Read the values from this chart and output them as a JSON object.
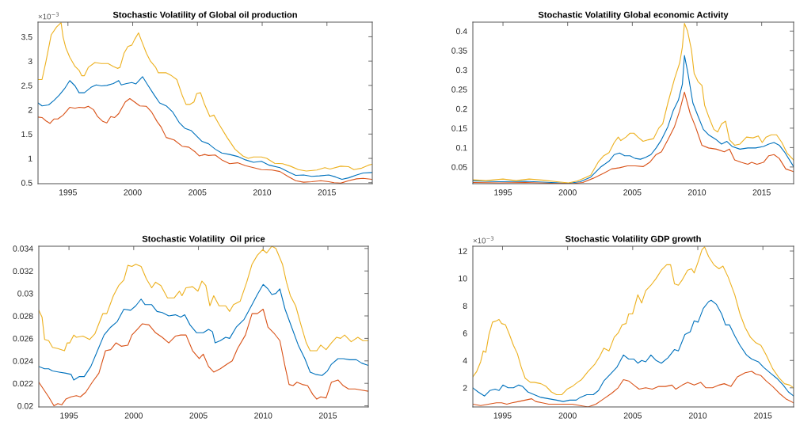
{
  "chart_data": [
    {
      "type": "line",
      "title": "Stochastic Volatility of Global oil production",
      "annotations": [
        "×10$^{−3}$"
      ],
      "xlim": [
        1992.69,
        2018.5
      ],
      "ylim": [
        0.48,
        3.8
      ],
      "xticks": [
        1995,
        2000,
        2005,
        2010,
        2015
      ],
      "yticks": [
        0.5,
        1,
        1.5,
        2,
        2.5,
        3,
        3.5
      ],
      "series": [
        {
          "color": "#0072bd",
          "x": [
            1992.69,
            1993.0,
            1993.51,
            1993.92,
            1994.33,
            1994.73,
            1995.14,
            1995.55,
            1995.86,
            1996.27,
            1996.78,
            1997.18,
            1997.59,
            1998.0,
            1998.51,
            1998.92,
            1999.12,
            1999.53,
            1999.94,
            2000.24,
            2000.76,
            2001.16,
            2001.67,
            2002.08,
            2002.59,
            2003.1,
            2003.61,
            2004.02,
            2004.53,
            2004.94,
            2005.35,
            2005.86,
            2006.37,
            2006.88,
            2007.49,
            2008.1,
            2008.71,
            2009.33,
            2009.94,
            2010.55,
            2011.37,
            2011.98,
            2012.59,
            2013.2,
            2013.82,
            2014.43,
            2015.14,
            2015.65,
            2016.16,
            2016.67,
            2017.29,
            2017.8,
            2018.47
          ],
          "values": [
            2.14,
            2.08,
            2.1,
            2.19,
            2.3,
            2.43,
            2.6,
            2.49,
            2.35,
            2.35,
            2.46,
            2.51,
            2.49,
            2.5,
            2.54,
            2.6,
            2.51,
            2.54,
            2.56,
            2.53,
            2.68,
            2.51,
            2.3,
            2.14,
            2.08,
            1.95,
            1.73,
            1.62,
            1.57,
            1.46,
            1.35,
            1.3,
            1.19,
            1.11,
            1.08,
            1.04,
            0.97,
            0.92,
            0.94,
            0.86,
            0.81,
            0.73,
            0.65,
            0.66,
            0.63,
            0.64,
            0.66,
            0.62,
            0.57,
            0.6,
            0.66,
            0.7,
            0.71
          ]
        },
        {
          "color": "#d95319",
          "x": [
            1992.69,
            1993.0,
            1993.31,
            1993.61,
            1993.92,
            1994.22,
            1994.63,
            1995.14,
            1995.55,
            1995.86,
            1996.27,
            1996.57,
            1996.98,
            1997.29,
            1997.69,
            1998.0,
            1998.31,
            1998.61,
            1998.92,
            1999.43,
            1999.78,
            2000.14,
            2000.55,
            2001.06,
            2001.47,
            2001.88,
            2002.18,
            2002.59,
            2003.2,
            2003.82,
            2004.33,
            2004.84,
            2005.14,
            2005.55,
            2005.86,
            2006.37,
            2006.88,
            2007.49,
            2008.1,
            2008.71,
            2009.33,
            2009.94,
            2010.76,
            2011.37,
            2011.98,
            2012.59,
            2013.2,
            2013.82,
            2014.53,
            2015.14,
            2015.55,
            2016.06,
            2016.67,
            2017.29,
            2017.8,
            2018.47
          ],
          "values": [
            1.85,
            1.84,
            1.77,
            1.72,
            1.81,
            1.81,
            1.89,
            2.05,
            2.03,
            2.05,
            2.04,
            2.07,
            2.0,
            1.86,
            1.76,
            1.73,
            1.86,
            1.84,
            1.92,
            2.16,
            2.23,
            2.16,
            2.08,
            2.07,
            1.95,
            1.76,
            1.65,
            1.43,
            1.38,
            1.25,
            1.23,
            1.13,
            1.05,
            1.08,
            1.06,
            1.07,
            0.97,
            0.89,
            0.91,
            0.85,
            0.81,
            0.77,
            0.76,
            0.73,
            0.63,
            0.54,
            0.51,
            0.52,
            0.54,
            0.52,
            0.5,
            0.49,
            0.54,
            0.58,
            0.59,
            0.57
          ]
        },
        {
          "color": "#edb120",
          "x": [
            1992.69,
            1993.0,
            1993.31,
            1993.71,
            1994.12,
            1994.47,
            1994.63,
            1994.84,
            1995.14,
            1995.55,
            1995.86,
            1996.06,
            1996.27,
            1996.57,
            1997.08,
            1997.59,
            1998.1,
            1998.51,
            1998.82,
            1999.02,
            1999.33,
            1999.63,
            1999.94,
            2000.14,
            2000.45,
            2000.65,
            2001.06,
            2001.37,
            2001.78,
            2001.98,
            2002.59,
            2003.0,
            2003.41,
            2003.82,
            2004.12,
            2004.43,
            2004.73,
            2004.94,
            2005.24,
            2005.55,
            2005.96,
            2006.27,
            2006.67,
            2007.29,
            2007.9,
            2008.51,
            2008.92,
            2009.33,
            2009.94,
            2010.35,
            2010.96,
            2011.57,
            2012.18,
            2012.8,
            2013.41,
            2014.22,
            2014.84,
            2015.24,
            2016.06,
            2016.67,
            2017.08,
            2017.69,
            2018.2,
            2018.47
          ],
          "values": [
            2.62,
            2.62,
            3.0,
            3.54,
            3.7,
            3.79,
            3.49,
            3.27,
            3.08,
            2.89,
            2.81,
            2.7,
            2.7,
            2.87,
            2.97,
            2.95,
            2.95,
            2.89,
            2.85,
            2.87,
            3.16,
            3.3,
            3.33,
            3.44,
            3.58,
            3.44,
            3.16,
            3.0,
            2.87,
            2.76,
            2.76,
            2.7,
            2.62,
            2.3,
            2.11,
            2.11,
            2.16,
            2.33,
            2.35,
            2.11,
            1.86,
            1.89,
            1.7,
            1.43,
            1.19,
            1.05,
            1.0,
            1.03,
            1.03,
            1.0,
            0.9,
            0.89,
            0.84,
            0.77,
            0.74,
            0.76,
            0.81,
            0.78,
            0.84,
            0.83,
            0.77,
            0.8,
            0.86,
            0.88
          ]
        }
      ]
    },
    {
      "type": "line",
      "title": "Stochastic Volatility Global economic Activity",
      "xlim": [
        1992.67,
        2017.47
      ],
      "ylim": [
        0.007,
        0.423
      ],
      "xticks": [
        1995,
        2000,
        2005,
        2010,
        2015
      ],
      "yticks": [
        0.05,
        0.1,
        0.15,
        0.2,
        0.25,
        0.3,
        0.35,
        0.4
      ],
      "series": [
        {
          "color": "#0072bd",
          "x": [
            1992.67,
            1994.7,
            1996.72,
            1998.74,
            2000.06,
            2000.97,
            2001.78,
            2002.59,
            2003.2,
            2003.6,
            2004.01,
            2004.41,
            2004.82,
            2005.22,
            2005.63,
            2006.03,
            2006.44,
            2006.84,
            2007.25,
            2007.75,
            2008.16,
            2008.56,
            2008.87,
            2009.03,
            2009.27,
            2009.68,
            2010.08,
            2010.49,
            2010.89,
            2011.5,
            2011.9,
            2012.31,
            2012.71,
            2013.32,
            2013.93,
            2014.53,
            2015.14,
            2015.55,
            2015.95,
            2016.36,
            2016.76,
            2017.47
          ],
          "values": [
            0.014,
            0.012,
            0.013,
            0.01,
            0.008,
            0.012,
            0.024,
            0.051,
            0.065,
            0.082,
            0.086,
            0.079,
            0.079,
            0.072,
            0.07,
            0.075,
            0.082,
            0.099,
            0.12,
            0.154,
            0.195,
            0.222,
            0.263,
            0.337,
            0.297,
            0.215,
            0.181,
            0.147,
            0.133,
            0.12,
            0.109,
            0.116,
            0.103,
            0.096,
            0.099,
            0.099,
            0.103,
            0.109,
            0.113,
            0.106,
            0.089,
            0.051
          ]
        },
        {
          "color": "#d95319",
          "x": [
            1992.67,
            1994.7,
            1996.72,
            1998.74,
            2000.36,
            2001.17,
            2001.98,
            2002.79,
            2003.4,
            2004.01,
            2004.62,
            2005.22,
            2005.83,
            2006.34,
            2006.84,
            2007.25,
            2007.75,
            2008.26,
            2008.66,
            2009.03,
            2009.47,
            2009.88,
            2010.38,
            2010.89,
            2011.5,
            2012.11,
            2012.51,
            2012.91,
            2013.42,
            2013.93,
            2014.23,
            2014.64,
            2015.14,
            2015.55,
            2015.95,
            2016.36,
            2016.86,
            2017.47
          ],
          "values": [
            0.01,
            0.009,
            0.01,
            0.008,
            0.007,
            0.01,
            0.021,
            0.034,
            0.045,
            0.048,
            0.053,
            0.053,
            0.051,
            0.062,
            0.082,
            0.089,
            0.12,
            0.154,
            0.195,
            0.243,
            0.188,
            0.154,
            0.106,
            0.099,
            0.096,
            0.089,
            0.096,
            0.068,
            0.062,
            0.057,
            0.062,
            0.057,
            0.062,
            0.079,
            0.082,
            0.072,
            0.045,
            0.038
          ]
        },
        {
          "color": "#edb120",
          "x": [
            1992.67,
            1993.68,
            1995.0,
            1996.01,
            1997.02,
            1998.14,
            1999.15,
            2000.06,
            2000.77,
            2001.38,
            2001.78,
            2002.39,
            2002.79,
            2003.2,
            2003.6,
            2003.91,
            2004.11,
            2004.51,
            2004.82,
            2005.12,
            2005.43,
            2005.83,
            2006.23,
            2006.64,
            2007.04,
            2007.35,
            2007.75,
            2008.26,
            2008.66,
            2008.87,
            2009.03,
            2009.27,
            2009.57,
            2009.78,
            2010.08,
            2010.38,
            2010.59,
            2010.89,
            2011.3,
            2011.6,
            2011.9,
            2012.21,
            2012.51,
            2012.91,
            2013.32,
            2013.83,
            2014.33,
            2014.74,
            2015.04,
            2015.34,
            2015.75,
            2016.15,
            2016.56,
            2016.96,
            2017.47
          ],
          "values": [
            0.017,
            0.015,
            0.019,
            0.015,
            0.019,
            0.016,
            0.012,
            0.009,
            0.014,
            0.023,
            0.029,
            0.064,
            0.079,
            0.087,
            0.113,
            0.127,
            0.118,
            0.127,
            0.137,
            0.137,
            0.127,
            0.116,
            0.12,
            0.123,
            0.15,
            0.161,
            0.215,
            0.277,
            0.318,
            0.359,
            0.42,
            0.4,
            0.352,
            0.291,
            0.27,
            0.26,
            0.209,
            0.181,
            0.147,
            0.14,
            0.161,
            0.168,
            0.12,
            0.106,
            0.109,
            0.127,
            0.125,
            0.13,
            0.113,
            0.127,
            0.133,
            0.133,
            0.113,
            0.086,
            0.068
          ]
        }
      ]
    },
    {
      "type": "line",
      "title": "Stochastic Volatility  Oil price",
      "xlim": [
        1992.67,
        2018.12
      ],
      "ylim": [
        0.0199,
        0.0342
      ],
      "xticks": [
        1995,
        2000,
        2005,
        2010,
        2015
      ],
      "yticks": [
        0.02,
        0.022,
        0.024,
        0.026,
        0.028,
        0.03,
        0.032,
        0.034
      ],
      "series": [
        {
          "color": "#0072bd",
          "x": [
            1992.67,
            1993.12,
            1993.43,
            1993.73,
            1994.24,
            1994.76,
            1995.16,
            1995.37,
            1995.78,
            1996.18,
            1996.69,
            1997.2,
            1997.71,
            1998.22,
            1998.73,
            1999.24,
            1999.76,
            2000.16,
            2000.57,
            2000.88,
            2001.39,
            2001.8,
            2002.2,
            2002.71,
            2003.22,
            2003.63,
            2003.94,
            2004.35,
            2004.86,
            2005.37,
            2005.78,
            2006.08,
            2006.29,
            2006.69,
            2007.1,
            2007.41,
            2007.92,
            2008.53,
            2009.14,
            2009.55,
            2010.0,
            2010.37,
            2010.67,
            2010.98,
            2011.29,
            2011.69,
            2012.2,
            2012.71,
            2013.22,
            2013.63,
            2014.04,
            2014.55,
            2014.96,
            2015.27,
            2015.78,
            2016.18,
            2016.69,
            2017.2,
            2017.61,
            2018.12
          ],
          "values": [
            0.0235,
            0.0233,
            0.0233,
            0.0231,
            0.023,
            0.0229,
            0.0228,
            0.0223,
            0.0226,
            0.0226,
            0.0235,
            0.0249,
            0.0263,
            0.027,
            0.0275,
            0.0286,
            0.0285,
            0.0289,
            0.0295,
            0.029,
            0.029,
            0.0284,
            0.0283,
            0.028,
            0.0281,
            0.0279,
            0.0281,
            0.0272,
            0.0265,
            0.0265,
            0.0268,
            0.0266,
            0.0256,
            0.0258,
            0.0261,
            0.026,
            0.027,
            0.0277,
            0.029,
            0.0299,
            0.0308,
            0.0304,
            0.0299,
            0.03,
            0.0304,
            0.0286,
            0.027,
            0.0254,
            0.0242,
            0.023,
            0.0228,
            0.0227,
            0.0231,
            0.0237,
            0.0242,
            0.0242,
            0.0241,
            0.0241,
            0.0238,
            0.0236
          ]
        },
        {
          "color": "#d95319",
          "x": [
            1992.67,
            1993.02,
            1993.43,
            1993.84,
            1994.14,
            1994.45,
            1994.76,
            1995.16,
            1995.57,
            1995.88,
            1996.29,
            1996.8,
            1997.31,
            1997.82,
            1998.22,
            1998.63,
            1999.04,
            1999.55,
            1999.86,
            2000.27,
            2000.67,
            2001.18,
            2001.69,
            2002.2,
            2002.71,
            2003.22,
            2003.63,
            2004.04,
            2004.55,
            2005.06,
            2005.37,
            2005.78,
            2006.18,
            2006.69,
            2007.2,
            2007.61,
            2008.02,
            2008.63,
            2009.14,
            2009.55,
            2010.0,
            2010.37,
            2010.88,
            2011.29,
            2011.69,
            2012.0,
            2012.31,
            2012.61,
            2013.02,
            2013.43,
            2013.84,
            2014.14,
            2014.45,
            2014.86,
            2015.27,
            2015.78,
            2016.18,
            2016.59,
            2017.1,
            2017.61,
            2018.12
          ],
          "values": [
            0.0221,
            0.0215,
            0.0208,
            0.02,
            0.0202,
            0.0201,
            0.0206,
            0.0208,
            0.0209,
            0.0208,
            0.0212,
            0.0221,
            0.0229,
            0.0249,
            0.025,
            0.0256,
            0.0253,
            0.0254,
            0.0263,
            0.0268,
            0.0273,
            0.0272,
            0.0265,
            0.0261,
            0.0256,
            0.0262,
            0.0263,
            0.0263,
            0.0249,
            0.0242,
            0.0246,
            0.0235,
            0.023,
            0.0233,
            0.0237,
            0.024,
            0.0251,
            0.0263,
            0.0282,
            0.0282,
            0.0286,
            0.027,
            0.0264,
            0.0258,
            0.0235,
            0.0219,
            0.0218,
            0.0221,
            0.0219,
            0.0218,
            0.021,
            0.0206,
            0.0208,
            0.0207,
            0.0221,
            0.0223,
            0.0218,
            0.0215,
            0.0215,
            0.0214,
            0.0213
          ]
        },
        {
          "color": "#edb120",
          "x": [
            1992.67,
            1992.92,
            1993.12,
            1993.43,
            1993.73,
            1994.14,
            1994.65,
            1994.86,
            1995.06,
            1995.37,
            1995.57,
            1996.08,
            1996.59,
            1997.0,
            1997.61,
            1997.92,
            1998.43,
            1998.84,
            1999.24,
            1999.55,
            1999.86,
            2000.16,
            2000.57,
            2000.98,
            2001.39,
            2001.69,
            2002.1,
            2002.61,
            2003.12,
            2003.53,
            2003.73,
            2004.04,
            2004.55,
            2004.96,
            2005.27,
            2005.57,
            2005.88,
            2006.18,
            2006.59,
            2007.1,
            2007.41,
            2007.71,
            2008.22,
            2008.73,
            2009.14,
            2009.55,
            2009.96,
            2010.27,
            2010.67,
            2010.98,
            2011.49,
            2011.8,
            2012.1,
            2012.51,
            2012.92,
            2013.33,
            2013.63,
            2014.14,
            2014.45,
            2014.86,
            2015.27,
            2015.67,
            2015.98,
            2016.29,
            2016.8,
            2017.31,
            2017.71,
            2018.12
          ],
          "values": [
            0.0285,
            0.0279,
            0.0259,
            0.0258,
            0.0252,
            0.0251,
            0.0249,
            0.0256,
            0.0256,
            0.0263,
            0.0261,
            0.0262,
            0.0259,
            0.0264,
            0.0282,
            0.0282,
            0.0298,
            0.0307,
            0.0312,
            0.0325,
            0.0324,
            0.0326,
            0.0324,
            0.0313,
            0.0305,
            0.031,
            0.0307,
            0.0296,
            0.0296,
            0.0302,
            0.0298,
            0.0305,
            0.0306,
            0.0302,
            0.0311,
            0.0307,
            0.0289,
            0.0298,
            0.0289,
            0.0289,
            0.0284,
            0.029,
            0.0293,
            0.031,
            0.0326,
            0.0334,
            0.0339,
            0.0336,
            0.0342,
            0.034,
            0.0326,
            0.031,
            0.0298,
            0.0289,
            0.0272,
            0.0256,
            0.0249,
            0.0249,
            0.0254,
            0.025,
            0.0256,
            0.0261,
            0.026,
            0.0263,
            0.0257,
            0.0261,
            0.0258,
            0.0258
          ]
        }
      ]
    },
    {
      "type": "line",
      "title": "Stochastic Volatility GDP growth",
      "annotations": [
        "×10$^{−3}$"
      ],
      "xlim": [
        1992.72,
        2017.36
      ],
      "ylim": [
        0.6,
        12.35
      ],
      "xticks": [
        1995,
        2000,
        2005,
        2010,
        2015
      ],
      "yticks": [
        2,
        4,
        6,
        8,
        10,
        12
      ],
      "series": [
        {
          "color": "#0072bd",
          "x": [
            1992.72,
            1993.12,
            1993.62,
            1994.02,
            1994.43,
            1994.73,
            1995.03,
            1995.43,
            1995.84,
            1996.24,
            1996.54,
            1996.94,
            1997.44,
            1997.95,
            1998.55,
            1999.15,
            1999.66,
            2000.16,
            2000.66,
            2000.97,
            2001.47,
            2001.97,
            2002.37,
            2002.78,
            2003.28,
            2003.78,
            2004.29,
            2004.69,
            2005.09,
            2005.39,
            2005.69,
            2006.0,
            2006.4,
            2006.8,
            2007.2,
            2007.71,
            2008.21,
            2008.51,
            2009.01,
            2009.42,
            2009.72,
            2010.02,
            2010.42,
            2010.83,
            2011.03,
            2011.43,
            2011.83,
            2012.13,
            2012.43,
            2012.84,
            2013.24,
            2013.74,
            2014.14,
            2014.65,
            2015.05,
            2015.55,
            2016.06,
            2016.56,
            2016.96,
            2017.36
          ],
          "values": [
            2.0,
            1.7,
            1.4,
            1.8,
            1.9,
            1.8,
            2.2,
            2.0,
            2.0,
            2.2,
            2.1,
            1.7,
            1.5,
            1.3,
            1.2,
            1.1,
            1.0,
            1.1,
            1.1,
            1.3,
            1.5,
            1.5,
            1.8,
            2.5,
            3.0,
            3.5,
            4.4,
            4.1,
            4.1,
            3.8,
            4.0,
            3.9,
            4.4,
            4.0,
            3.8,
            4.2,
            4.8,
            4.7,
            5.9,
            6.1,
            6.9,
            6.8,
            7.8,
            8.3,
            8.4,
            8.1,
            7.4,
            6.6,
            6.6,
            5.8,
            5.1,
            4.4,
            4.1,
            3.9,
            3.5,
            3.1,
            2.7,
            2.2,
            1.7,
            1.4
          ]
        },
        {
          "color": "#d95319",
          "x": [
            1992.72,
            1993.32,
            1993.92,
            1994.53,
            1994.93,
            1995.33,
            1995.73,
            1996.24,
            1996.74,
            1997.24,
            1997.55,
            1998.05,
            1998.55,
            1999.15,
            1999.76,
            2000.36,
            2000.97,
            2001.57,
            2002.17,
            2002.78,
            2003.38,
            2003.88,
            2004.29,
            2004.69,
            2005.09,
            2005.49,
            2006.0,
            2006.5,
            2007.0,
            2007.51,
            2008.01,
            2008.31,
            2008.81,
            2009.22,
            2009.72,
            2010.22,
            2010.62,
            2011.13,
            2011.63,
            2012.03,
            2012.54,
            2013.04,
            2013.64,
            2014.14,
            2014.45,
            2014.85,
            2015.25,
            2015.75,
            2016.26,
            2016.76,
            2017.36
          ],
          "values": [
            0.8,
            0.7,
            0.8,
            0.9,
            0.9,
            0.8,
            0.9,
            1.0,
            1.1,
            1.2,
            1.0,
            0.9,
            0.8,
            0.8,
            0.8,
            0.8,
            0.7,
            0.6,
            0.8,
            1.2,
            1.6,
            2.0,
            2.6,
            2.5,
            2.2,
            1.9,
            2.0,
            1.9,
            2.1,
            2.1,
            2.2,
            1.9,
            2.2,
            2.4,
            2.2,
            2.4,
            2.0,
            2.0,
            2.2,
            2.3,
            2.1,
            2.8,
            3.1,
            3.2,
            3.0,
            2.9,
            2.5,
            2.1,
            1.6,
            1.2,
            0.9
          ]
        },
        {
          "color": "#edb120",
          "x": [
            1992.72,
            1993.02,
            1993.32,
            1993.52,
            1993.72,
            1993.96,
            1994.23,
            1994.53,
            1994.73,
            1994.93,
            1995.23,
            1995.53,
            1995.84,
            1996.14,
            1996.44,
            1996.74,
            1997.14,
            1997.44,
            1997.95,
            1998.35,
            1998.75,
            1999.15,
            1999.56,
            1999.96,
            2000.36,
            2000.76,
            2001.07,
            2001.57,
            2002.07,
            2002.47,
            2002.78,
            2003.18,
            2003.58,
            2003.88,
            2004.19,
            2004.49,
            2004.69,
            2004.99,
            2005.39,
            2005.69,
            2006.0,
            2006.4,
            2006.8,
            2007.2,
            2007.61,
            2007.91,
            2008.21,
            2008.51,
            2008.81,
            2009.22,
            2009.52,
            2009.72,
            2010.02,
            2010.32,
            2010.52,
            2010.83,
            2011.23,
            2011.63,
            2011.93,
            2012.33,
            2012.84,
            2013.24,
            2013.64,
            2014.04,
            2014.45,
            2014.85,
            2015.25,
            2015.75,
            2016.26,
            2016.66,
            2017.06,
            2017.36
          ],
          "values": [
            2.8,
            3.2,
            3.9,
            4.7,
            4.6,
            5.9,
            6.8,
            6.9,
            7.0,
            6.7,
            6.6,
            5.9,
            5.1,
            4.5,
            3.5,
            2.7,
            2.4,
            2.4,
            2.3,
            2.1,
            1.7,
            1.5,
            1.5,
            1.9,
            2.1,
            2.4,
            2.6,
            3.2,
            3.7,
            4.3,
            4.9,
            4.7,
            5.7,
            6.0,
            6.6,
            6.7,
            7.4,
            7.4,
            8.8,
            8.2,
            9.1,
            9.5,
            10.0,
            10.6,
            11.0,
            11.0,
            9.6,
            9.5,
            9.9,
            10.6,
            10.7,
            10.4,
            11.2,
            12.1,
            12.3,
            11.6,
            11.0,
            10.7,
            10.9,
            10.1,
            8.8,
            7.4,
            6.4,
            5.7,
            5.3,
            5.1,
            4.4,
            3.4,
            2.7,
            2.3,
            2.2,
            2.0
          ]
        }
      ]
    }
  ]
}
